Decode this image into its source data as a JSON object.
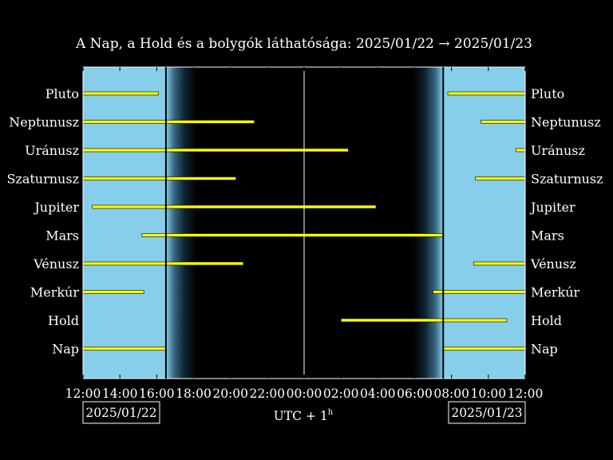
{
  "chart_data": {
    "type": "bar",
    "title": "A Nap, a Hold és a bolygók láthatósága: 2025/01/22 → 2025/01/23",
    "xlabel_main": "UTC + 1",
    "xlabel_sup": "h",
    "date_left": "2025/01/22",
    "date_right": "2025/01/23",
    "x_range_hours": [
      0,
      24
    ],
    "x_ticks": [
      {
        "h": 0,
        "label": "12:00"
      },
      {
        "h": 2,
        "label": "14:00"
      },
      {
        "h": 4,
        "label": "16:00"
      },
      {
        "h": 6,
        "label": "18:00"
      },
      {
        "h": 8,
        "label": "20:00"
      },
      {
        "h": 10,
        "label": "22:00"
      },
      {
        "h": 12,
        "label": "00:00"
      },
      {
        "h": 14,
        "label": "02:00"
      },
      {
        "h": 16,
        "label": "04:00"
      },
      {
        "h": 18,
        "label": "06:00"
      },
      {
        "h": 20,
        "label": "08:00"
      },
      {
        "h": 22,
        "label": "10:00"
      },
      {
        "h": 24,
        "label": "12:00"
      }
    ],
    "sunset_h": 4.5,
    "dusk_end_h": 6.2,
    "dawn_start_h": 17.9,
    "sunrise_h": 19.55,
    "midnight_h": 12,
    "colors": {
      "day": "#87ceeb",
      "night": "#000000",
      "bar": "#ffff00",
      "bar_edge": "#000000",
      "frame": "#ffffff"
    },
    "bodies": [
      {
        "name": "Pluto",
        "segments": [
          [
            0,
            4.1
          ],
          [
            19.8,
            24
          ]
        ]
      },
      {
        "name": "Neptunusz",
        "segments": [
          [
            0,
            9.3
          ],
          [
            21.6,
            24
          ]
        ]
      },
      {
        "name": "Uránusz",
        "segments": [
          [
            0,
            14.4
          ],
          [
            23.5,
            24
          ]
        ]
      },
      {
        "name": "Szaturnusz",
        "segments": [
          [
            0,
            8.3
          ],
          [
            21.3,
            24
          ]
        ]
      },
      {
        "name": "Jupiter",
        "segments": [
          [
            0.5,
            15.9
          ]
        ]
      },
      {
        "name": "Mars",
        "segments": [
          [
            3.2,
            19.55
          ]
        ]
      },
      {
        "name": "Vénusz",
        "segments": [
          [
            0,
            8.7
          ],
          [
            21.2,
            24
          ]
        ]
      },
      {
        "name": "Merkúr",
        "segments": [
          [
            0,
            3.3
          ],
          [
            19.0,
            24
          ]
        ]
      },
      {
        "name": "Hold",
        "segments": [
          [
            14.0,
            23.0
          ]
        ]
      },
      {
        "name": "Nap",
        "segments": [
          [
            0,
            4.5
          ],
          [
            19.55,
            24
          ]
        ]
      }
    ]
  }
}
